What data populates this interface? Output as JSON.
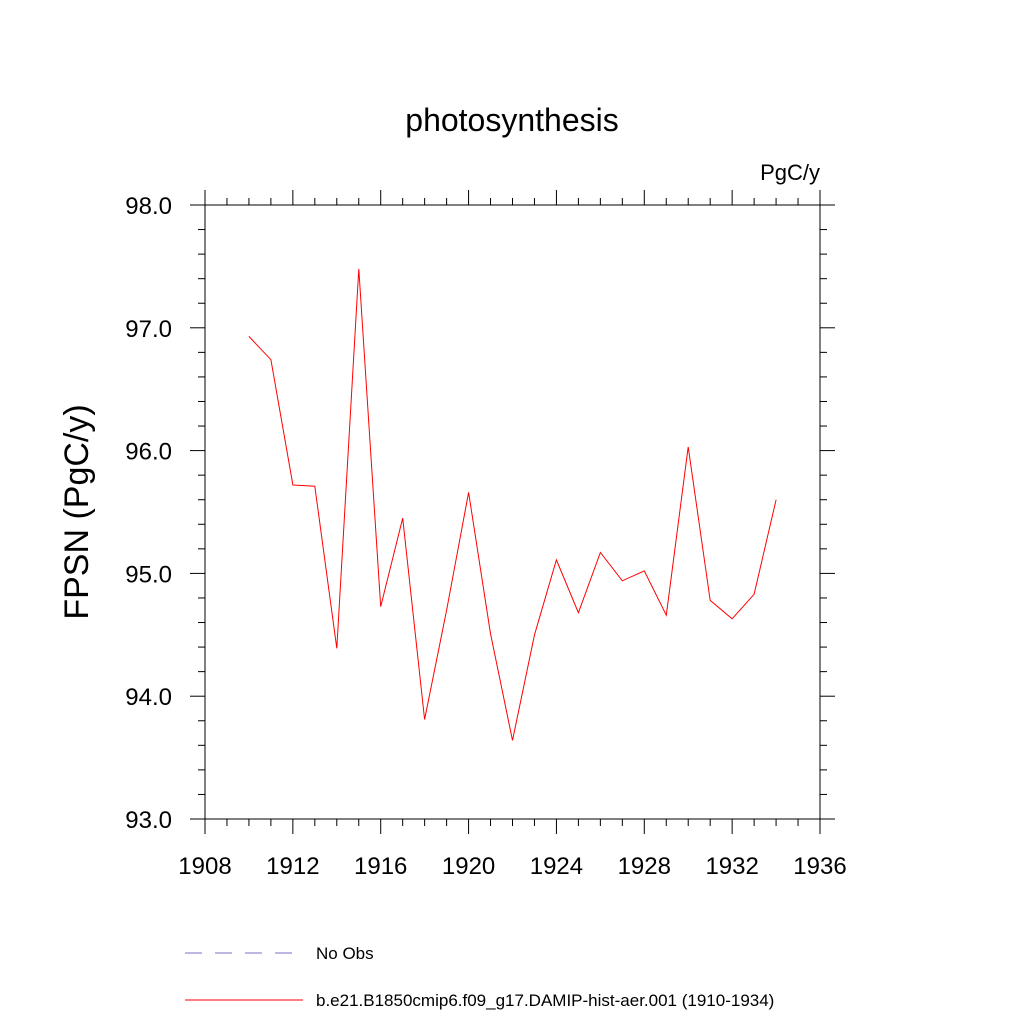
{
  "chart_data": {
    "type": "line",
    "title": "photosynthesis",
    "units": "PgC/y",
    "ylabel": "FPSN  (PgC/y)",
    "xlabel": "",
    "xlim": [
      1908,
      1936
    ],
    "ylim": [
      93.0,
      98.0
    ],
    "x_ticks": [
      1908,
      1912,
      1916,
      1920,
      1924,
      1928,
      1932,
      1936
    ],
    "y_ticks": [
      "93.0",
      "94.0",
      "95.0",
      "96.0",
      "97.0",
      "98.0"
    ],
    "legend_position": "bottom",
    "series": [
      {
        "name": "b.e21.B1850cmip6.f09_g17.DAMIP-hist-aer.001 (1910-1934)",
        "color": "#ff0000",
        "style": "solid",
        "x": [
          1910,
          1911,
          1912,
          1913,
          1914,
          1915,
          1916,
          1917,
          1918,
          1919,
          1920,
          1921,
          1922,
          1923,
          1924,
          1925,
          1926,
          1927,
          1928,
          1929,
          1930,
          1931,
          1932,
          1933,
          1934
        ],
        "y": [
          96.93,
          96.74,
          95.72,
          95.71,
          94.39,
          97.48,
          94.73,
          95.45,
          93.81,
          94.7,
          95.66,
          94.51,
          93.64,
          94.5,
          95.11,
          94.68,
          95.17,
          94.94,
          95.02,
          94.66,
          96.03,
          94.78,
          94.63,
          94.83,
          95.6
        ]
      },
      {
        "name": "No Obs",
        "color": "#7b6fc8",
        "style": "dashed",
        "x": [],
        "y": []
      }
    ]
  }
}
